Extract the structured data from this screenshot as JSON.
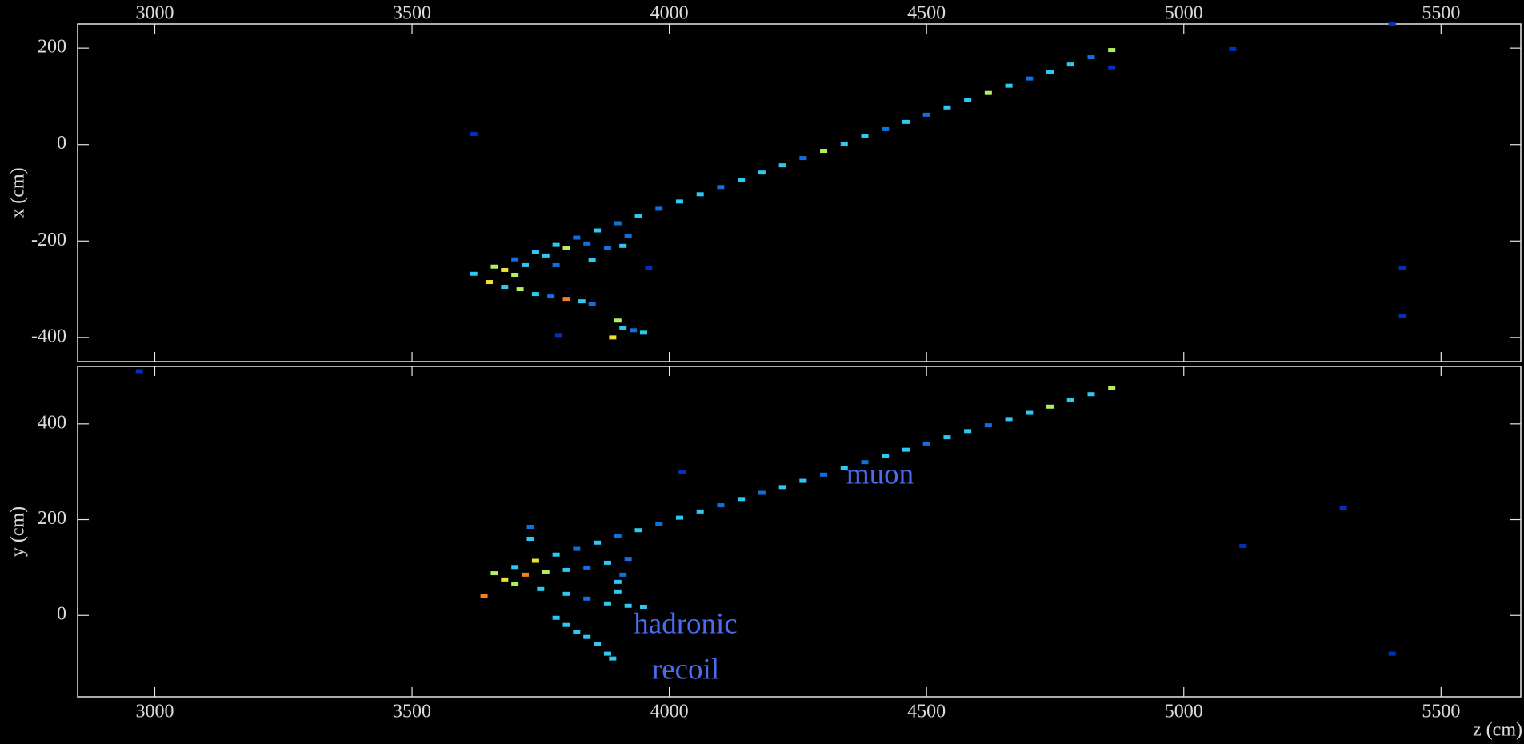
{
  "chart_data": [
    {
      "type": "scatter",
      "ylabel": "x (cm)",
      "xlim": [
        2850,
        5655
      ],
      "ylim": [
        -450,
        250
      ],
      "xticks": [
        3000,
        3500,
        4000,
        4500,
        5000,
        5500
      ],
      "yticks": [
        -400,
        -200,
        0,
        200
      ],
      "x": [
        3620,
        3660,
        3700,
        3740,
        3780,
        3820,
        3860,
        3900,
        3940,
        3980,
        4020,
        4060,
        4100,
        4140,
        4180,
        4220,
        4260,
        4300,
        4340,
        4380,
        4420,
        4460,
        4500,
        4540,
        4580,
        4620,
        4660,
        4700,
        4740,
        4780,
        4820,
        4860,
        3650,
        3680,
        3710,
        3740,
        3770,
        3800,
        3830,
        3850,
        3900,
        3910,
        3930,
        3950,
        3890,
        3680,
        3700,
        3720,
        3760,
        3800,
        3840,
        3880,
        3910,
        3920,
        3850,
        3780,
        3620,
        3960,
        4860,
        5095,
        5425,
        5425,
        3785,
        5405
      ],
      "y": [
        -268,
        -253,
        -238,
        -223,
        -208,
        -193,
        -178,
        -163,
        -148,
        -133,
        -118,
        -103,
        -88,
        -73,
        -58,
        -43,
        -28,
        -13,
        2,
        17,
        32,
        47,
        62,
        77,
        92,
        107,
        122,
        137,
        151,
        166,
        181,
        196,
        -285,
        -295,
        -300,
        -310,
        -315,
        -320,
        -325,
        -330,
        -365,
        -380,
        -385,
        -390,
        -400,
        -260,
        -270,
        -250,
        -230,
        -215,
        -205,
        -215,
        -210,
        -190,
        -240,
        -250,
        22,
        -255,
        160,
        198,
        -255,
        -355,
        -395,
        250
      ],
      "colors": [
        "#30c8f0",
        "#b0f060",
        "#1070e0",
        "#30c8f0",
        "#30c8f0",
        "#1070e0",
        "#30c8f0",
        "#1070e0",
        "#30c8f0",
        "#1070e0",
        "#30c8f0",
        "#30c8f0",
        "#1070e0",
        "#30c8f0",
        "#30c8f0",
        "#30c8f0",
        "#1070e0",
        "#b0f060",
        "#30c8f0",
        "#30c8f0",
        "#1070e0",
        "#30c8f0",
        "#1070e0",
        "#30c8f0",
        "#30c8f0",
        "#b0f060",
        "#30c8f0",
        "#1070e0",
        "#30c8f0",
        "#30c8f0",
        "#1070e0",
        "#b0f060",
        "#f0e030",
        "#30c8f0",
        "#b0f060",
        "#30c8f0",
        "#1070e0",
        "#f08020",
        "#30c8f0",
        "#1070e0",
        "#b0f060",
        "#30c8f0",
        "#1070e0",
        "#30c8f0",
        "#f0e030",
        "#f0e030",
        "#b0f060",
        "#30c8f0",
        "#30c8f0",
        "#b0f060",
        "#1070e0",
        "#1070e0",
        "#30c8f0",
        "#1070e0",
        "#30c8f0",
        "#1070e0",
        "#0030c0",
        "#0030c0",
        "#0030c0",
        "#0030c0",
        "#0030c0",
        "#0030c0",
        "#0030c0",
        "#0030c0"
      ]
    },
    {
      "type": "scatter",
      "ylabel": "y (cm)",
      "xlabel": "z (cm)",
      "xlim": [
        2850,
        5655
      ],
      "ylim": [
        -170,
        520
      ],
      "xticks": [
        3000,
        3500,
        4000,
        4500,
        5000,
        5500
      ],
      "yticks": [
        0,
        200,
        400
      ],
      "annotations": [
        "muon",
        "hadronic",
        "recoil"
      ],
      "x": [
        3660,
        3700,
        3740,
        3780,
        3820,
        3860,
        3900,
        3940,
        3980,
        4020,
        4060,
        4100,
        4140,
        4180,
        4220,
        4260,
        4300,
        4340,
        4380,
        4420,
        4460,
        4500,
        4540,
        4580,
        4620,
        4660,
        4700,
        4740,
        4780,
        4820,
        4860,
        3640,
        3680,
        3720,
        3760,
        3800,
        3840,
        3880,
        3920,
        3700,
        3750,
        3800,
        3840,
        3880,
        3920,
        3950,
        3730,
        3900,
        3900,
        3910,
        3780,
        3800,
        3820,
        3840,
        3860,
        3880,
        3890,
        3730,
        2970,
        4025,
        5115,
        5310,
        5405
      ],
      "y": [
        88,
        101,
        114,
        127,
        139,
        152,
        165,
        178,
        191,
        204,
        217,
        230,
        243,
        256,
        268,
        281,
        294,
        307,
        320,
        333,
        346,
        359,
        372,
        385,
        397,
        410,
        423,
        436,
        449,
        462,
        475,
        40,
        75,
        85,
        90,
        95,
        100,
        110,
        118,
        65,
        55,
        45,
        35,
        25,
        20,
        18,
        160,
        70,
        50,
        85,
        -5,
        -20,
        -35,
        -45,
        -60,
        -80,
        -90,
        185,
        510,
        300,
        145,
        225,
        -80
      ],
      "colors": [
        "#b0f060",
        "#30c8f0",
        "#f0e030",
        "#30c8f0",
        "#1070e0",
        "#30c8f0",
        "#1070e0",
        "#30c8f0",
        "#1070e0",
        "#30c8f0",
        "#30c8f0",
        "#1070e0",
        "#30c8f0",
        "#1070e0",
        "#30c8f0",
        "#30c8f0",
        "#1070e0",
        "#30c8f0",
        "#1070e0",
        "#30c8f0",
        "#30c8f0",
        "#1070e0",
        "#30c8f0",
        "#30c8f0",
        "#1070e0",
        "#30c8f0",
        "#30c8f0",
        "#b0f060",
        "#30c8f0",
        "#30c8f0",
        "#b0f060",
        "#f08020",
        "#f0e030",
        "#f08020",
        "#b0f060",
        "#30c8f0",
        "#1070e0",
        "#30c8f0",
        "#1070e0",
        "#b0f060",
        "#30c8f0",
        "#30c8f0",
        "#1070e0",
        "#30c8f0",
        "#30c8f0",
        "#30c8f0",
        "#30c8f0",
        "#30c8f0",
        "#30c8f0",
        "#1070e0",
        "#30c8f0",
        "#30c8f0",
        "#30c8f0",
        "#30c8f0",
        "#30c8f0",
        "#30c8f0",
        "#30c8f0",
        "#1070e0",
        "#0030c0",
        "#0030c0",
        "#0030c0",
        "#0030c0",
        "#0030c0"
      ]
    }
  ]
}
